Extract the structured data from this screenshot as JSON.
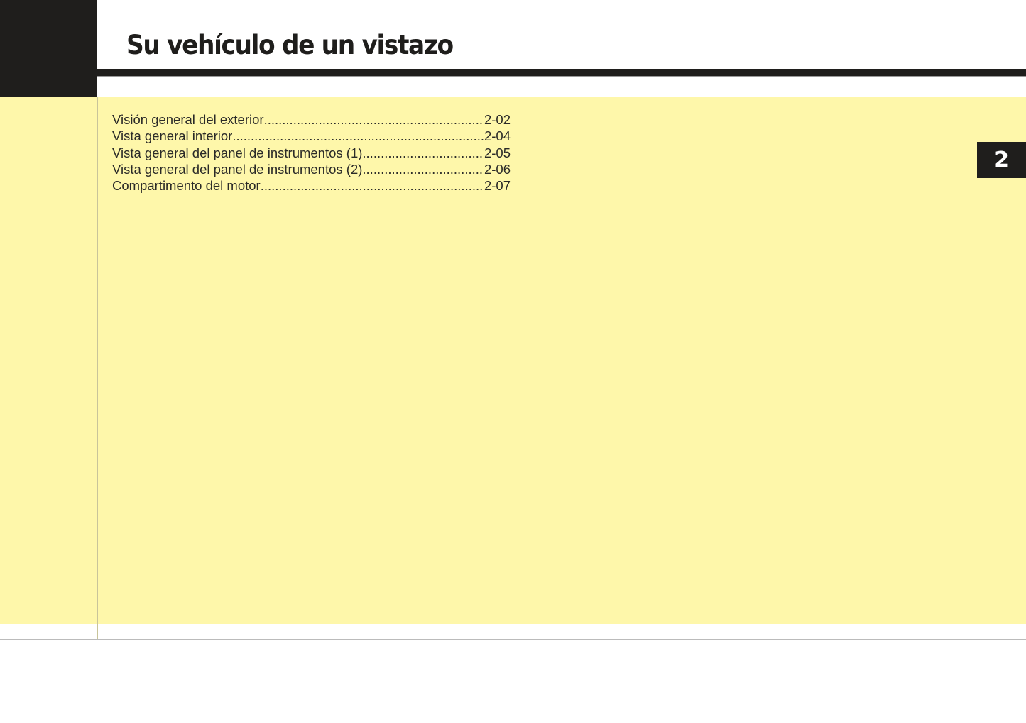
{
  "header": {
    "title": "Su vehículo de un vistazo"
  },
  "chapter_tab": "2",
  "toc": [
    {
      "label": "Visión general del exterior",
      "page": "2-02"
    },
    {
      "label": "Vista general interior",
      "page": "2-04"
    },
    {
      "label": "Vista general del panel de instrumentos (1)",
      "page": "2-05"
    },
    {
      "label": "Vista general del panel de instrumentos (2)",
      "page": "2-06"
    },
    {
      "label": "Compartimento del motor",
      "page": "2-07"
    }
  ],
  "colors": {
    "accent_dark": "#1f1e1c",
    "background_yellow": "#fef7aa"
  }
}
